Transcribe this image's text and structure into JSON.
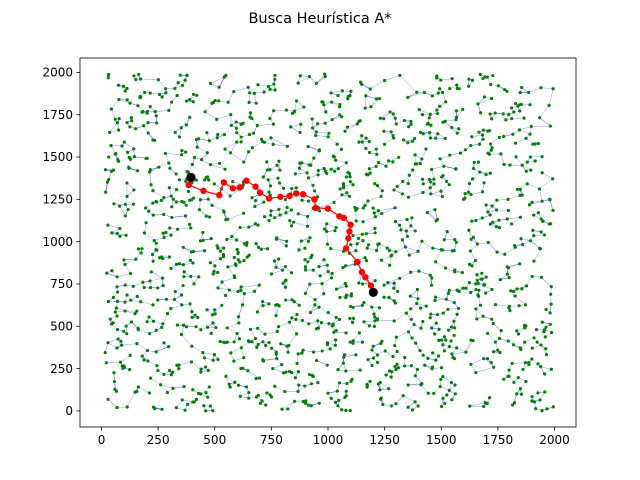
{
  "chart_data": {
    "type": "scatter",
    "title": "Busca Heurística A*",
    "xlabel": "",
    "ylabel": "",
    "xlim": [
      -95,
      2095
    ],
    "ylim": [
      -95,
      2085
    ],
    "x_ticks": [
      0,
      250,
      500,
      750,
      1000,
      1250,
      1500,
      1750,
      2000
    ],
    "y_ticks": [
      0,
      250,
      500,
      750,
      1000,
      1250,
      1500,
      1750,
      2000
    ],
    "grid": false,
    "legend": "none",
    "colors": {
      "node": "#008000",
      "edge": "#0000ff",
      "path": "#ff0000",
      "endpoint": "#000000"
    },
    "graph": {
      "node_count": 1500,
      "x_range": [
        15,
        1995
      ],
      "y_range": [
        0,
        1990
      ],
      "seed": 7
    },
    "series": [
      {
        "values": [
          {
            "x": 395,
            "y": 1380
          },
          {
            "x": 385,
            "y": 1335
          },
          {
            "x": 450,
            "y": 1300
          },
          {
            "x": 520,
            "y": 1275
          },
          {
            "x": 540,
            "y": 1350
          },
          {
            "x": 580,
            "y": 1315
          },
          {
            "x": 610,
            "y": 1320
          },
          {
            "x": 640,
            "y": 1360
          },
          {
            "x": 680,
            "y": 1325
          },
          {
            "x": 700,
            "y": 1290
          },
          {
            "x": 740,
            "y": 1255
          },
          {
            "x": 790,
            "y": 1265
          },
          {
            "x": 830,
            "y": 1270
          },
          {
            "x": 860,
            "y": 1285
          },
          {
            "x": 890,
            "y": 1280
          },
          {
            "x": 940,
            "y": 1250
          },
          {
            "x": 945,
            "y": 1200
          },
          {
            "x": 1000,
            "y": 1195
          },
          {
            "x": 1050,
            "y": 1150
          },
          {
            "x": 1070,
            "y": 1140
          },
          {
            "x": 1100,
            "y": 1100
          },
          {
            "x": 1095,
            "y": 1060
          },
          {
            "x": 1090,
            "y": 1020
          },
          {
            "x": 1080,
            "y": 960
          },
          {
            "x": 1130,
            "y": 880
          },
          {
            "x": 1150,
            "y": 820
          },
          {
            "x": 1165,
            "y": 790
          },
          {
            "x": 1190,
            "y": 740
          },
          {
            "x": 1200,
            "y": 700
          }
        ]
      }
    ],
    "endpoints": [
      {
        "x": 395,
        "y": 1380
      },
      {
        "x": 1200,
        "y": 700
      }
    ]
  }
}
